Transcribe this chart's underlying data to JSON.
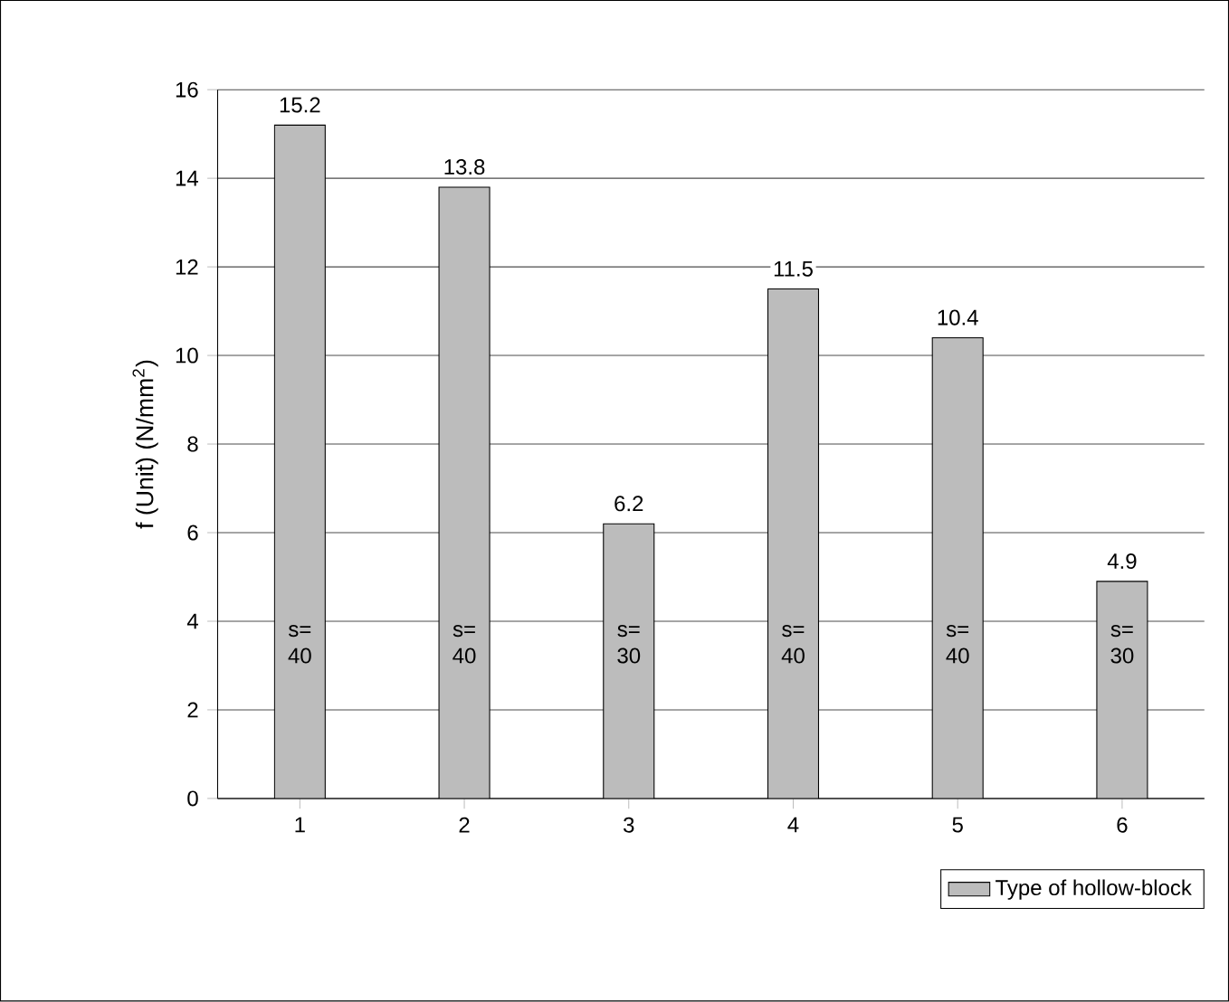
{
  "chart_data": {
    "type": "bar",
    "ylabel": "f (Unit) (N/mm$^{2}$)",
    "categories": [
      "1",
      "2",
      "3",
      "4",
      "5",
      "6"
    ],
    "series": [
      {
        "name": "Type of hollow-block",
        "color": "#bcbcbc",
        "values": [
          15.2,
          13.8,
          6.2,
          11.5,
          10.4,
          4.9
        ]
      }
    ],
    "ylim": [
      0,
      16
    ],
    "yticks": [
      0,
      2,
      4,
      6,
      8,
      10,
      12,
      14,
      16
    ],
    "grid": "y",
    "legend": "bottom right",
    "data_labels": true,
    "annotations": [
      "s= 40",
      "s= 40",
      "s= 30",
      "s= 40",
      "s= 40",
      "s= 30"
    ]
  }
}
